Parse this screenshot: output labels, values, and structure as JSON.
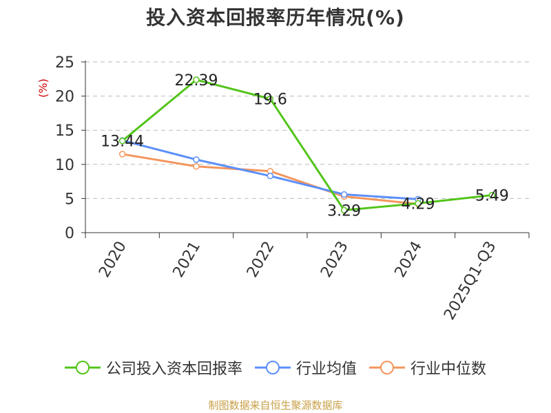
{
  "chart_data": {
    "type": "line",
    "title": "投入资本回报率历年情况(%)",
    "ylabel": "(%)",
    "xlabel": "",
    "categories": [
      "2020",
      "2021",
      "2022",
      "2023",
      "2024",
      "2025Q1-Q3"
    ],
    "ylim": [
      0,
      25
    ],
    "yticks": [
      0,
      5,
      10,
      15,
      20,
      25
    ],
    "grid": true,
    "legend_position": "bottom",
    "series": [
      {
        "name": "公司投入资本回报率",
        "color": "#52c41a",
        "values": [
          13.44,
          22.39,
          19.6,
          3.29,
          4.29,
          5.49
        ],
        "labels": [
          "13.44",
          "22.39",
          "19.6",
          "3.29",
          "4.29",
          "5.49"
        ]
      },
      {
        "name": "行业均值",
        "color": "#5b8ff9",
        "values": [
          13.5,
          10.7,
          8.3,
          5.6,
          4.9,
          null
        ]
      },
      {
        "name": "行业中位数",
        "color": "#f4955c",
        "values": [
          11.5,
          9.7,
          9.0,
          5.3,
          4.2,
          null
        ]
      }
    ]
  },
  "source": "制图数据来自恒生聚源数据库"
}
